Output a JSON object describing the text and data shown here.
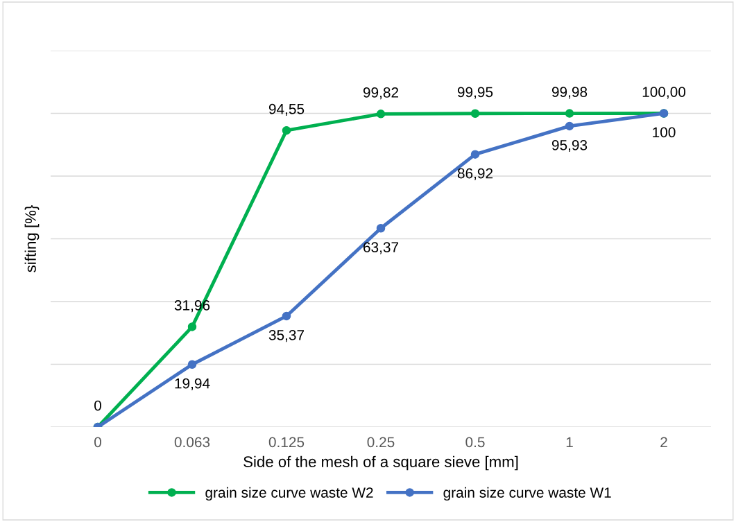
{
  "chart_data": {
    "type": "line",
    "xlabel": "Side of the mesh of a square sieve [mm]",
    "ylabel": "sifting [%}",
    "categories": [
      "0",
      "0.063",
      "0.125",
      "0.25",
      "0.5",
      "1",
      "2"
    ],
    "series": [
      {
        "name": "grain size curve waste W2",
        "color": "#00b050",
        "values": [
          0,
          31.96,
          94.55,
          99.82,
          99.95,
          99.98,
          100.0
        ],
        "value_labels": [
          "0",
          "31,96",
          "94,55",
          "99,82",
          "99,95",
          "99,98",
          "100,00"
        ]
      },
      {
        "name": "grain size curve waste W1",
        "color": "#4472c4",
        "values": [
          0,
          19.94,
          35.37,
          63.37,
          86.92,
          95.93,
          100
        ],
        "value_labels": [
          null,
          "19,94",
          "35,37",
          "63,37",
          "86,92",
          "95,93",
          "100"
        ]
      }
    ],
    "ylim": [
      0,
      120
    ],
    "yticks": [
      {
        "value": 0,
        "label": null
      },
      {
        "value": 20,
        "label": null
      },
      {
        "value": 40,
        "label": null
      },
      {
        "value": 60,
        "label": null
      },
      {
        "value": 80,
        "label": null
      },
      {
        "value": 100,
        "label": null
      },
      {
        "value": 120,
        "label": null
      }
    ],
    "tick_labels": "x",
    "grid": "y",
    "legend": "bottom",
    "marker": "circle",
    "line_style": "solid"
  }
}
